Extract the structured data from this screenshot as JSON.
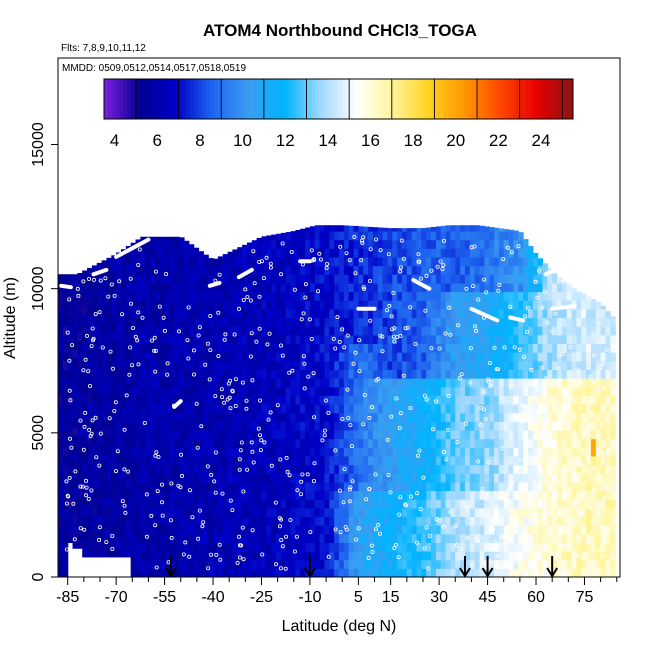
{
  "chart_data": {
    "type": "heatmap",
    "title": "ATOM4 Northbound CHCl3_TOGA",
    "subtitle_flights": "Flts: 7,8,9,10,11,12",
    "subtitle_dates": "MMDD: 0509,0512,0514,0517,0518,0519",
    "xlabel": "Latitude (deg N)",
    "ylabel": "Altitude (m)",
    "xlim": [
      -88,
      86
    ],
    "ylim": [
      0,
      18000
    ],
    "x_ticks": [
      -85,
      -70,
      -55,
      -40,
      -25,
      -10,
      5,
      15,
      30,
      45,
      60,
      75
    ],
    "x_tick_labels": [
      "-85",
      "-70",
      "-55",
      "-40",
      "-25",
      "-10",
      "5",
      "15",
      "30",
      "45",
      "60",
      "75"
    ],
    "x_minor_ticks": [
      -80,
      -75,
      -65,
      -60,
      -50,
      -45,
      -35,
      -30,
      -20,
      -15,
      -5,
      0,
      10,
      20,
      25,
      35,
      40,
      50,
      55,
      65,
      70,
      80,
      85
    ],
    "y_ticks": [
      0,
      5000,
      10000,
      15000
    ],
    "y_tick_labels": [
      "0",
      "5000",
      "10000",
      "15000"
    ],
    "colorbar": {
      "range": [
        3.5,
        25.5
      ],
      "ticks": [
        4,
        6,
        8,
        10,
        12,
        14,
        16,
        18,
        20,
        22,
        24
      ],
      "tick_labels": [
        "4",
        "6",
        "8",
        "10",
        "12",
        "14",
        "16",
        "18",
        "20",
        "22",
        "24"
      ],
      "colors": [
        "#7f1fe0",
        "#000090",
        "#0000c8",
        "#1e64f0",
        "#3c9cf0",
        "#00b4ff",
        "#a0d8ff",
        "#ffffff",
        "#fff59a",
        "#ffd21e",
        "#ff9600",
        "#ff4600",
        "#e60000",
        "#8c1414"
      ]
    },
    "profile_tops": [
      [
        -88,
        10500
      ],
      [
        -82,
        10500
      ],
      [
        -70,
        11200
      ],
      [
        -62,
        11800
      ],
      [
        -50,
        11800
      ],
      [
        -40,
        11000
      ],
      [
        -25,
        11800
      ],
      [
        -15,
        12000
      ],
      [
        -8,
        12200
      ],
      [
        0,
        12200
      ],
      [
        15,
        12100
      ],
      [
        25,
        12100
      ],
      [
        33,
        12200
      ],
      [
        42,
        12200
      ],
      [
        55,
        12000
      ],
      [
        60,
        11200
      ],
      [
        66,
        10500
      ],
      [
        72,
        10000
      ],
      [
        80,
        9500
      ],
      [
        84,
        9000
      ]
    ],
    "profile_bottom": [
      [
        -88,
        0
      ],
      [
        -85,
        0
      ],
      [
        -85,
        1200
      ],
      [
        -83,
        1200
      ],
      [
        -83,
        1000
      ],
      [
        -80,
        1000
      ],
      [
        -80,
        700
      ],
      [
        -65,
        700
      ],
      [
        -65,
        0
      ],
      [
        86,
        0
      ]
    ],
    "concentration_field": [
      {
        "lat": -85,
        "bands": [
          [
            0,
            10500,
            5.5
          ]
        ]
      },
      {
        "lat": -60,
        "bands": [
          [
            0,
            11800,
            6.0
          ]
        ]
      },
      {
        "lat": -40,
        "bands": [
          [
            0,
            11000,
            6.2
          ]
        ]
      },
      {
        "lat": -20,
        "bands": [
          [
            0,
            12000,
            6.5
          ]
        ]
      },
      {
        "lat": -5,
        "bands": [
          [
            0,
            12200,
            7.0
          ]
        ]
      },
      {
        "lat": 5,
        "bands": [
          [
            0,
            3000,
            10.5
          ],
          [
            3000,
            8000,
            9.0
          ],
          [
            8000,
            12200,
            7.5
          ]
        ]
      },
      {
        "lat": 15,
        "bands": [
          [
            0,
            3000,
            11.5
          ],
          [
            3000,
            7000,
            10.5
          ],
          [
            7000,
            12100,
            8.0
          ]
        ]
      },
      {
        "lat": 25,
        "bands": [
          [
            0,
            3000,
            12.5
          ],
          [
            3000,
            7000,
            11.5
          ],
          [
            7000,
            12100,
            8.5
          ]
        ]
      },
      {
        "lat": 35,
        "bands": [
          [
            0,
            3000,
            14.0
          ],
          [
            3000,
            7000,
            13.0
          ],
          [
            7000,
            10000,
            10.5
          ],
          [
            10000,
            12200,
            8.5
          ]
        ]
      },
      {
        "lat": 45,
        "bands": [
          [
            0,
            3000,
            14.5
          ],
          [
            3000,
            7000,
            13.5
          ],
          [
            7000,
            10000,
            11.0
          ],
          [
            10000,
            12200,
            9.0
          ]
        ]
      },
      {
        "lat": 55,
        "bands": [
          [
            0,
            3000,
            15.5
          ],
          [
            3000,
            7000,
            15.0
          ],
          [
            7000,
            10000,
            12.5
          ],
          [
            10000,
            12000,
            10.0
          ]
        ]
      },
      {
        "lat": 65,
        "bands": [
          [
            0,
            3000,
            16.0
          ],
          [
            3000,
            7000,
            16.0
          ],
          [
            7000,
            10000,
            14.0
          ]
        ]
      },
      {
        "lat": 75,
        "bands": [
          [
            0,
            3000,
            16.5
          ],
          [
            3000,
            7000,
            16.5
          ],
          [
            7000,
            9500,
            14.5
          ]
        ]
      },
      {
        "lat": 80,
        "bands": [
          [
            4000,
            4500,
            20.0
          ]
        ]
      }
    ],
    "flight_track_segments": [
      [
        [
          -87,
          10100
        ],
        [
          -84,
          10050
        ]
      ],
      [
        [
          -77,
          10500
        ],
        [
          -73,
          10650
        ]
      ],
      [
        [
          -70,
          11100
        ],
        [
          -60,
          11700
        ]
      ],
      [
        [
          -41,
          10100
        ],
        [
          -38,
          10200
        ]
      ],
      [
        [
          -32,
          10400
        ],
        [
          -28,
          10650
        ]
      ],
      [
        [
          -13,
          10950
        ],
        [
          -10,
          10950
        ]
      ],
      [
        [
          5,
          9300
        ],
        [
          10,
          9300
        ]
      ],
      [
        [
          22,
          10300
        ],
        [
          27,
          10000
        ]
      ],
      [
        [
          40,
          9300
        ],
        [
          48,
          8900
        ]
      ],
      [
        [
          52,
          9000
        ],
        [
          56,
          8900
        ]
      ],
      [
        [
          63,
          10500
        ],
        [
          70,
          10900
        ]
      ],
      [
        [
          65,
          9300
        ],
        [
          72,
          9400
        ]
      ],
      [
        [
          -52,
          5900
        ],
        [
          -50,
          6100
        ]
      ]
    ],
    "sample_points_note": "white open circles mark sampling locations",
    "arrows_latitude": [
      -53,
      -10,
      38,
      45,
      65
    ]
  }
}
